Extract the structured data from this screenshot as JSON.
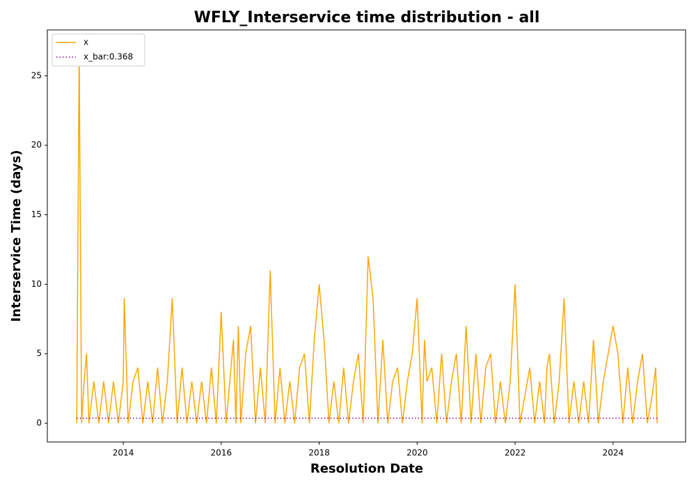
{
  "chart_data": {
    "type": "line",
    "title": "WFLY_Interservice time distribution - all",
    "x_label": "Resolution Date",
    "y_label": "Interservice Time (days)",
    "xlim": [
      2012.45,
      2025.48
    ],
    "ylim": [
      -1.35,
      28.3
    ],
    "xticks": [
      2014,
      2016,
      2018,
      2020,
      2022,
      2024
    ],
    "yticks": [
      0,
      5,
      10,
      15,
      20,
      25
    ],
    "legend": "upper left",
    "series": [
      {
        "name": "x",
        "color": "#ffa500",
        "style": "solid",
        "x": [
          2013.05,
          2013.1,
          2013.15,
          2013.2,
          2013.25,
          2013.3,
          2013.4,
          2013.5,
          2013.6,
          2013.7,
          2013.8,
          2013.9,
          2014.0,
          2014.02,
          2014.1,
          2014.2,
          2014.3,
          2014.4,
          2014.5,
          2014.6,
          2014.7,
          2014.8,
          2014.9,
          2015.0,
          2015.1,
          2015.2,
          2015.3,
          2015.4,
          2015.5,
          2015.6,
          2015.7,
          2015.8,
          2015.9,
          2016.0,
          2016.1,
          2016.2,
          2016.25,
          2016.3,
          2016.35,
          2016.4,
          2016.5,
          2016.6,
          2016.7,
          2016.8,
          2016.9,
          2017.0,
          2017.1,
          2017.2,
          2017.3,
          2017.4,
          2017.5,
          2017.6,
          2017.7,
          2017.8,
          2017.9,
          2018.0,
          2018.1,
          2018.2,
          2018.3,
          2018.4,
          2018.5,
          2018.6,
          2018.7,
          2018.8,
          2018.9,
          2019.0,
          2019.1,
          2019.2,
          2019.3,
          2019.4,
          2019.5,
          2019.6,
          2019.7,
          2019.8,
          2019.9,
          2020.0,
          2020.1,
          2020.15,
          2020.2,
          2020.3,
          2020.4,
          2020.5,
          2020.6,
          2020.7,
          2020.8,
          2020.9,
          2021.0,
          2021.1,
          2021.2,
          2021.3,
          2021.4,
          2021.5,
          2021.6,
          2021.7,
          2021.8,
          2021.9,
          2022.0,
          2022.1,
          2022.2,
          2022.3,
          2022.4,
          2022.5,
          2022.6,
          2022.65,
          2022.7,
          2022.8,
          2022.9,
          2023.0,
          2023.1,
          2023.2,
          2023.3,
          2023.4,
          2023.5,
          2023.6,
          2023.7,
          2023.8,
          2023.9,
          2024.0,
          2024.1,
          2024.2,
          2024.3,
          2024.4,
          2024.5,
          2024.6,
          2024.7,
          2024.8,
          2024.87,
          2024.9
        ],
        "values": [
          0,
          27,
          0,
          3,
          5,
          0,
          3,
          0,
          3,
          0,
          3,
          0,
          3,
          9,
          0,
          3,
          4,
          0,
          3,
          0,
          4,
          0,
          3,
          9,
          0,
          4,
          0,
          3,
          0,
          3,
          0,
          4,
          0,
          8,
          0,
          4,
          6,
          0,
          7,
          0,
          5,
          7,
          0,
          4,
          0,
          11,
          0,
          4,
          0,
          3,
          0,
          4,
          5,
          0,
          6,
          10,
          6,
          0,
          3,
          0,
          4,
          0,
          3,
          5,
          0,
          12,
          9,
          0,
          6,
          0,
          3,
          4,
          0,
          3,
          5,
          9,
          0,
          6,
          3,
          4,
          0,
          5,
          0,
          3,
          5,
          0,
          7,
          0,
          5,
          0,
          4,
          5,
          0,
          3,
          0,
          3,
          10,
          0,
          2,
          4,
          0,
          3,
          0,
          4,
          5,
          0,
          3,
          9,
          0,
          3,
          0,
          3,
          0,
          6,
          0,
          3,
          5,
          7,
          5,
          0,
          4,
          0,
          3,
          5,
          0,
          2,
          4,
          0
        ]
      },
      {
        "name": "x_bar:0.368",
        "color": "#800080",
        "style": "dotted",
        "x": [
          2013.05,
          2024.9
        ],
        "values": [
          0.368,
          0.368
        ]
      }
    ]
  }
}
